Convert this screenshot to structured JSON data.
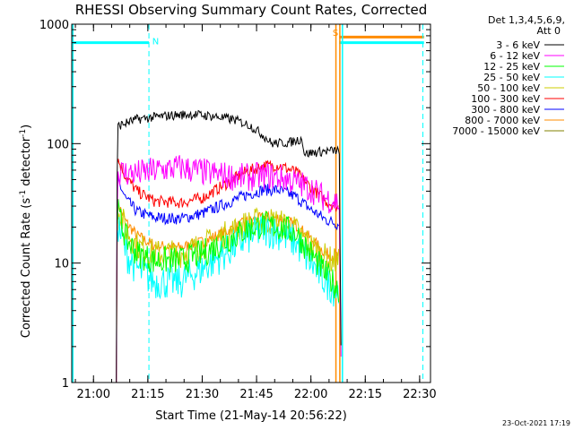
{
  "chart_data": {
    "type": "line",
    "title": "RHESSI Observing Summary Count Rates, Corrected",
    "xlabel": "Start Time (21-May-14 20:56:22)",
    "ylabel_main": "Corrected Count Rate (s",
    "ylabel_sup1": "-1",
    "ylabel_mid": " detector",
    "ylabel_sup2": "-1",
    "ylabel_end": ")",
    "y_scale": "log",
    "ylim": [
      1,
      1000
    ],
    "xlim_minutes": [
      20.9,
      22.55
    ],
    "x_ticks": [
      {
        "value": 21.0,
        "label": "21:00"
      },
      {
        "value": 21.25,
        "label": "21:15"
      },
      {
        "value": 21.5,
        "label": "21:30"
      },
      {
        "value": 21.75,
        "label": "21:45"
      },
      {
        "value": 22.0,
        "label": "22:00"
      },
      {
        "value": 22.25,
        "label": "22:15"
      },
      {
        "value": 22.5,
        "label": "22:30"
      }
    ],
    "y_ticks": [
      {
        "value": 1,
        "label": "1"
      },
      {
        "value": 10,
        "label": "10"
      },
      {
        "value": 100,
        "label": "100"
      },
      {
        "value": 1000,
        "label": "1000"
      }
    ],
    "legend_header": [
      "Det 1,3,4,5,6,9,",
      "Att 0"
    ],
    "legend_placement": "right-outside",
    "series": [
      {
        "name": "3 - 6 keV",
        "color": "#000000",
        "noise": 0.04,
        "points": [
          [
            21.105,
            1
          ],
          [
            21.11,
            140
          ],
          [
            21.2,
            160
          ],
          [
            21.35,
            172
          ],
          [
            21.45,
            176
          ],
          [
            21.55,
            170
          ],
          [
            21.65,
            158
          ],
          [
            21.72,
            142
          ],
          [
            21.78,
            118
          ],
          [
            21.82,
            100
          ],
          [
            21.9,
            102
          ],
          [
            21.96,
            110
          ],
          [
            21.97,
            82
          ],
          [
            22.05,
            86
          ],
          [
            22.13,
            88
          ],
          [
            22.14,
            1
          ]
        ]
      },
      {
        "name": "6 - 12 keV",
        "color": "#ff00ff",
        "noise": 0.12,
        "points": [
          [
            21.105,
            1
          ],
          [
            21.11,
            58
          ],
          [
            21.2,
            56
          ],
          [
            21.3,
            60
          ],
          [
            21.4,
            63
          ],
          [
            21.5,
            58
          ],
          [
            21.6,
            54
          ],
          [
            21.7,
            52
          ],
          [
            21.8,
            54
          ],
          [
            21.9,
            50
          ],
          [
            22.0,
            42
          ],
          [
            22.05,
            36
          ],
          [
            22.13,
            32
          ],
          [
            22.14,
            1
          ]
        ]
      },
      {
        "name": "12 - 25 keV",
        "color": "#00ff00",
        "noise": 0.12,
        "points": [
          [
            21.11,
            28
          ],
          [
            21.15,
            16
          ],
          [
            21.2,
            12
          ],
          [
            21.28,
            10.5
          ],
          [
            21.4,
            10.5
          ],
          [
            21.5,
            12
          ],
          [
            21.6,
            15
          ],
          [
            21.7,
            19
          ],
          [
            21.78,
            21
          ],
          [
            21.85,
            20
          ],
          [
            21.93,
            18
          ],
          [
            22.0,
            12
          ],
          [
            22.07,
            8
          ],
          [
            22.13,
            6
          ]
        ]
      },
      {
        "name": "25 - 50 keV",
        "color": "#00ffff",
        "noise": 0.15,
        "points": [
          [
            21.11,
            22
          ],
          [
            21.15,
            12
          ],
          [
            21.2,
            9
          ],
          [
            21.28,
            7
          ],
          [
            21.4,
            7
          ],
          [
            21.5,
            9
          ],
          [
            21.6,
            12
          ],
          [
            21.7,
            16
          ],
          [
            21.78,
            19
          ],
          [
            21.85,
            18
          ],
          [
            21.93,
            15
          ],
          [
            22.0,
            10
          ],
          [
            22.07,
            7
          ],
          [
            22.13,
            5.5
          ]
        ]
      },
      {
        "name": "50 - 100 keV",
        "color": "#cccc00",
        "noise": 0.12,
        "points": [
          [
            21.11,
            30
          ],
          [
            21.15,
            19
          ],
          [
            21.2,
            14
          ],
          [
            21.28,
            12
          ],
          [
            21.4,
            12
          ],
          [
            21.5,
            14
          ],
          [
            21.6,
            17
          ],
          [
            21.7,
            21
          ],
          [
            21.78,
            23
          ],
          [
            21.85,
            22
          ],
          [
            21.93,
            19
          ],
          [
            22.0,
            14
          ],
          [
            22.07,
            11
          ],
          [
            22.13,
            10
          ]
        ]
      },
      {
        "name": "100 - 300 keV",
        "color": "#ff0000",
        "noise": 0.05,
        "points": [
          [
            21.11,
            75
          ],
          [
            21.15,
            52
          ],
          [
            21.2,
            40
          ],
          [
            21.28,
            33
          ],
          [
            21.4,
            32
          ],
          [
            21.5,
            35
          ],
          [
            21.6,
            45
          ],
          [
            21.7,
            58
          ],
          [
            21.78,
            65
          ],
          [
            21.85,
            66
          ],
          [
            21.93,
            58
          ],
          [
            22.0,
            43
          ],
          [
            22.07,
            33
          ],
          [
            22.13,
            29
          ]
        ]
      },
      {
        "name": "300 - 800 keV",
        "color": "#0000ff",
        "noise": 0.05,
        "points": [
          [
            21.11,
            50
          ],
          [
            21.15,
            34
          ],
          [
            21.2,
            27
          ],
          [
            21.28,
            24
          ],
          [
            21.4,
            23.5
          ],
          [
            21.5,
            26
          ],
          [
            21.6,
            31
          ],
          [
            21.7,
            37
          ],
          [
            21.78,
            41
          ],
          [
            21.85,
            41
          ],
          [
            21.93,
            36
          ],
          [
            22.0,
            28
          ],
          [
            22.07,
            23
          ],
          [
            22.13,
            21
          ]
        ]
      },
      {
        "name": "800 - 7000 keV",
        "color": "#ff8c00",
        "noise": 0.05,
        "points": [
          [
            21.105,
            1
          ],
          [
            21.11,
            32
          ],
          [
            21.15,
            22
          ],
          [
            21.2,
            17
          ],
          [
            21.28,
            14
          ],
          [
            21.4,
            13.5
          ],
          [
            21.5,
            15
          ],
          [
            21.6,
            18
          ],
          [
            21.7,
            22
          ],
          [
            21.78,
            24
          ],
          [
            21.85,
            24
          ],
          [
            21.93,
            21
          ],
          [
            22.0,
            16
          ],
          [
            22.07,
            12
          ],
          [
            22.13,
            11.5
          ]
        ]
      },
      {
        "name": "7000 - 15000 keV",
        "color": "#808000",
        "noise": 0.0,
        "points": []
      }
    ],
    "annotations": {
      "top_bars": [
        {
          "color": "#00ffff",
          "x0": 20.9,
          "x1": 21.255,
          "y": 700
        },
        {
          "color": "#00ffff",
          "x0": 22.13,
          "x1": 22.52,
          "y": 700
        },
        {
          "color": "#ff8c00",
          "x0": 22.13,
          "x1": 22.52,
          "y": 780
        }
      ],
      "solid_lines": [
        {
          "color": "#00ffff",
          "x": 20.905
        },
        {
          "color": "#00ffff",
          "x": 22.145
        },
        {
          "color": "#ff8c00",
          "x": 22.115
        },
        {
          "color": "#ff8c00",
          "x": 22.133
        }
      ],
      "dashed_lines": [
        {
          "color": "#00ffff",
          "x": 21.255
        },
        {
          "color": "#00ffff",
          "x": 22.515
        }
      ],
      "flags": [
        {
          "text": "N",
          "color": "#00ffff",
          "x": 21.27,
          "y": 680
        },
        {
          "text": "S",
          "color": "#ff8c00",
          "x": 22.1,
          "y": 800
        }
      ]
    }
  },
  "footer_date": "23-Oct-2021 17:19"
}
